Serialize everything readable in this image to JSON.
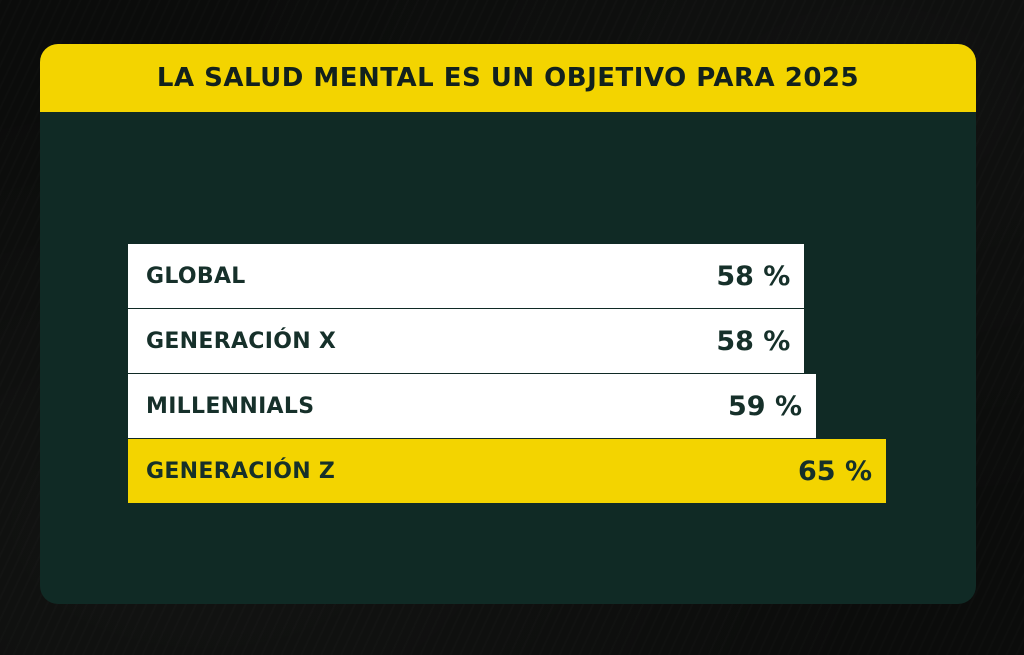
{
  "colors": {
    "page_background": "#0b0c0b",
    "card_background": "#102a25",
    "accent_yellow": "#f3d400",
    "bar_white": "#ffffff",
    "text_dark": "#16302a"
  },
  "header": {
    "title": "LA SALUD MENTAL ES UN OBJETIVO PARA 2025"
  },
  "chart_data": {
    "type": "bar",
    "orientation": "horizontal",
    "title": "LA SALUD MENTAL ES UN OBJETIVO PARA 2025",
    "categories": [
      "GLOBAL",
      "GENERACIÓN X",
      "MILLENNIALS",
      "GENERACIÓN Z"
    ],
    "values": [
      58,
      58,
      59,
      65
    ],
    "value_labels": [
      "58 %",
      "58 %",
      "59 %",
      "65 %"
    ],
    "highlighted_category": "GENERACIÓN Z",
    "xlim": [
      0,
      65
    ],
    "grid": false,
    "legend": "none"
  }
}
